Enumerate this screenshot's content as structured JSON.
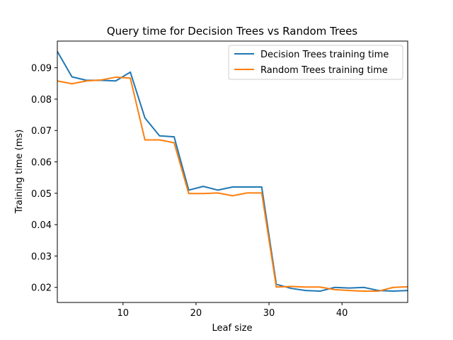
{
  "chart_data": {
    "type": "line",
    "title": "Query time for Decision Trees vs Random Trees",
    "xlabel": "Leaf size",
    "ylabel": "Training time (ms)",
    "xlim": [
      1,
      49
    ],
    "ylim": [
      0.0152,
      0.0985
    ],
    "xticks": [
      10,
      20,
      30,
      40
    ],
    "yticks": [
      0.02,
      0.03,
      0.04,
      0.05,
      0.06,
      0.07,
      0.08,
      0.09
    ],
    "grid": false,
    "legend_position": "top-right",
    "x": [
      1,
      3,
      5,
      7,
      9,
      11,
      13,
      15,
      17,
      19,
      21,
      23,
      25,
      27,
      29,
      31,
      33,
      35,
      37,
      39,
      41,
      43,
      45,
      47,
      49
    ],
    "series": [
      {
        "name": "Decision Trees training time",
        "color": "#1f77b4",
        "values": [
          0.0952,
          0.0871,
          0.086,
          0.086,
          0.0858,
          0.0886,
          0.074,
          0.0683,
          0.068,
          0.051,
          0.0522,
          0.051,
          0.052,
          0.052,
          0.052,
          0.021,
          0.0197,
          0.019,
          0.0188,
          0.02,
          0.0198,
          0.02,
          0.019,
          0.0188,
          0.019
        ]
      },
      {
        "name": "Random Trees training time",
        "color": "#ff7f0e",
        "values": [
          0.0858,
          0.0849,
          0.0858,
          0.0861,
          0.087,
          0.0867,
          0.067,
          0.067,
          0.0661,
          0.0499,
          0.0499,
          0.0501,
          0.0492,
          0.0501,
          0.0501,
          0.0201,
          0.0203,
          0.0201,
          0.0201,
          0.0193,
          0.019,
          0.0188,
          0.0188,
          0.02,
          0.0202
        ]
      }
    ]
  }
}
